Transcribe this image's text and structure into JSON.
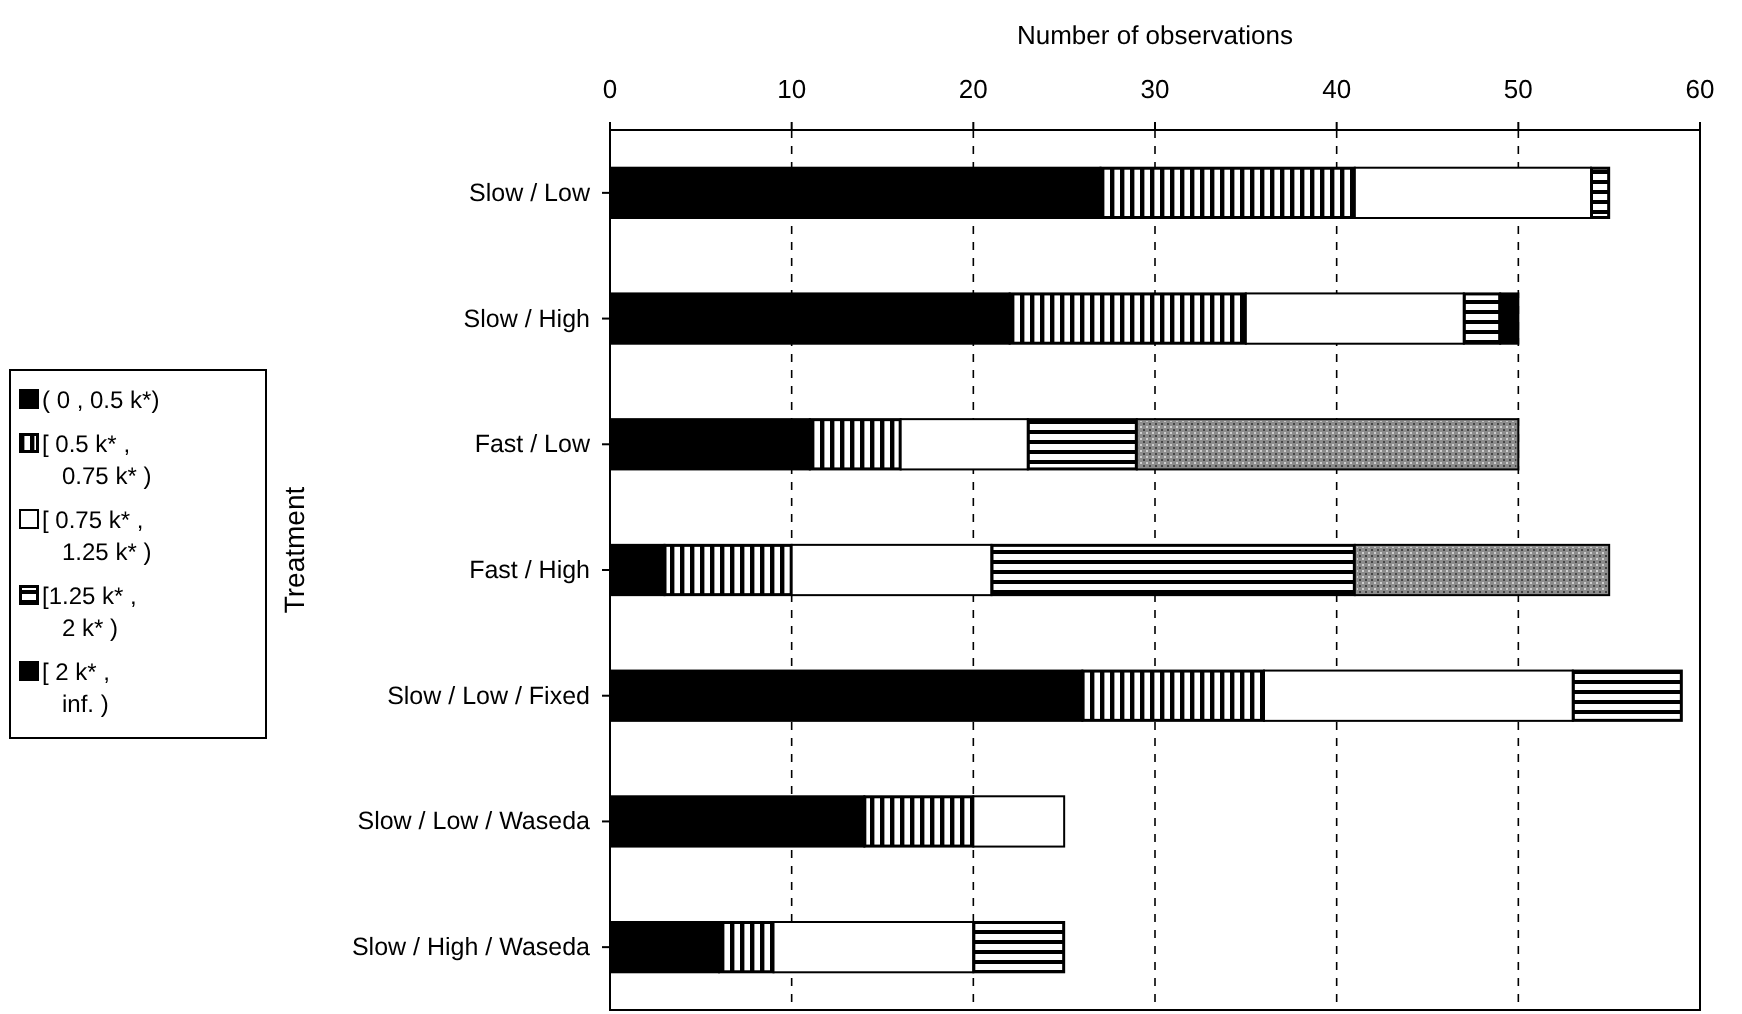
{
  "chart_data": {
    "type": "bar",
    "orientation": "horizontal",
    "stacked": true,
    "xlabel": "Number of observations",
    "ylabel": "Treatment",
    "categories": [
      "Slow / Low",
      "Slow / High",
      "Fast / Low",
      "Fast / High",
      "Slow / Low / Fixed",
      "Slow / Low / Waseda",
      "Slow / High / Waseda"
    ],
    "series": [
      {
        "name": "( 0 , 0.5 k*)",
        "color": "#000000",
        "values": [
          27,
          22,
          11,
          3,
          26,
          14,
          6
        ]
      },
      {
        "name": "[ 0.5 k* , 0.75 k* )",
        "color": "#000000",
        "values": [
          14,
          13,
          5,
          7,
          10,
          6,
          3
        ]
      },
      {
        "name": "[ 0.75 k* , 1.25 k* )",
        "color": "#ffffff",
        "values": [
          13,
          12,
          7,
          11,
          17,
          5,
          11
        ]
      },
      {
        "name": "[1.25 k* , 2 k* )",
        "color": "#000000",
        "values": [
          1,
          2,
          6,
          20,
          6,
          0,
          5
        ]
      },
      {
        "name": "[ 2 k* , inf. )",
        "color": "#000000",
        "colors": [
          "#000000",
          "#000000",
          "#8c8c8c",
          "#8c8c8c",
          "#000000",
          "#000000",
          "#000000"
        ],
        "values": [
          0,
          1,
          21,
          14,
          0,
          0,
          0
        ]
      }
    ],
    "xlim": [
      0,
      60
    ],
    "xticks": [
      0,
      10,
      20,
      30,
      40,
      50,
      60
    ],
    "grid": "x",
    "legend": "left"
  }
}
